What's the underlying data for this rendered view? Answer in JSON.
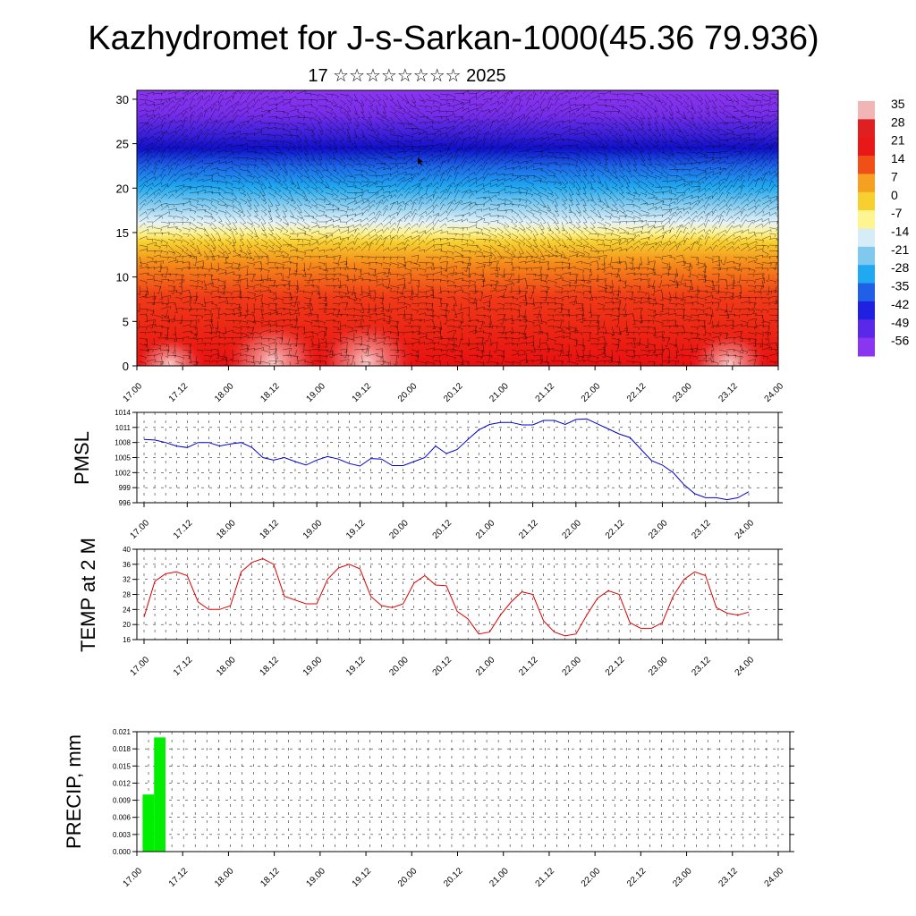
{
  "title": "Kazhydromet for J-s-Sarkan-1000(45.36 79.936)",
  "subtitle": "17 ☆☆☆☆☆☆☆☆ 2025",
  "x_tick_labels": [
    "17.00",
    "17.12",
    "18.00",
    "18.12",
    "19.00",
    "19.12",
    "20.00",
    "20.12",
    "21.00",
    "21.12",
    "22.00",
    "22.12",
    "23.00",
    "23.12",
    "24.00"
  ],
  "chart_data": [
    {
      "type": "heatmap",
      "name": "vertical temperature cross-section with wind barbs",
      "x_ticks": [
        "17.00",
        "17.12",
        "18.00",
        "18.12",
        "19.00",
        "19.12",
        "20.00",
        "20.12",
        "21.00",
        "21.12",
        "22.00",
        "22.12",
        "23.00",
        "23.12",
        "24.00"
      ],
      "y_ticks": [
        0,
        5,
        10,
        15,
        20,
        25,
        30
      ],
      "ylim": [
        0,
        31
      ],
      "colorbar_labels": [
        "35",
        "28",
        "21",
        "14",
        "7",
        "0",
        "-7",
        "-14",
        "-21",
        "-28",
        "-35",
        "-42",
        "-49",
        "-56"
      ],
      "colorbar_stops": [
        {
          "v": 35,
          "c": "#f2b5b5"
        },
        {
          "v": 28,
          "c": "#e02020"
        },
        {
          "v": 21,
          "c": "#e81818"
        },
        {
          "v": 14,
          "c": "#f05018"
        },
        {
          "v": 7,
          "c": "#f5a020"
        },
        {
          "v": 0,
          "c": "#f7d030"
        },
        {
          "v": -7,
          "c": "#fff590"
        },
        {
          "v": -14,
          "c": "#d6ecf7"
        },
        {
          "v": -21,
          "c": "#7fc8f0"
        },
        {
          "v": -28,
          "c": "#20a8f0"
        },
        {
          "v": -35,
          "c": "#2060e8"
        },
        {
          "v": -42,
          "c": "#2020e0"
        },
        {
          "v": -49,
          "c": "#5a28e8"
        },
        {
          "v": -56,
          "c": "#8a35f0"
        }
      ],
      "grid": false
    },
    {
      "type": "line",
      "ylabel": "PMSL",
      "ylim": [
        996,
        1014
      ],
      "y_ticks": [
        996,
        999,
        1002,
        1005,
        1008,
        1011,
        1014
      ],
      "x": [
        "17.00",
        "17.03",
        "17.06",
        "17.09",
        "17.12",
        "17.15",
        "17.18",
        "17.21",
        "18.00",
        "18.03",
        "18.06",
        "18.09",
        "18.12",
        "18.15",
        "18.18",
        "18.21",
        "19.00",
        "19.03",
        "19.06",
        "19.09",
        "19.12",
        "19.15",
        "19.18",
        "19.21",
        "20.00",
        "20.03",
        "20.06",
        "20.09",
        "20.12",
        "20.15",
        "20.18",
        "20.21",
        "21.00",
        "21.03",
        "21.06",
        "21.09",
        "21.12",
        "21.15",
        "21.18",
        "21.21",
        "22.00",
        "22.03",
        "22.06",
        "22.09",
        "22.12",
        "22.15",
        "22.18",
        "22.21",
        "23.00",
        "23.03",
        "23.06",
        "23.09",
        "23.12",
        "23.15",
        "23.18",
        "23.21",
        "24.00"
      ],
      "series": [
        {
          "color": "#0000cc",
          "values": [
            1008.6,
            1008.5,
            1008.0,
            1007.3,
            1007.0,
            1008.0,
            1008.0,
            1007.3,
            1007.7,
            1008.0,
            1007.0,
            1005.0,
            1004.5,
            1005.0,
            1004.2,
            1003.5,
            1004.5,
            1005.2,
            1004.7,
            1003.8,
            1003.3,
            1004.8,
            1004.7,
            1003.4,
            1003.4,
            1004.2,
            1005.0,
            1007.3,
            1005.8,
            1006.6,
            1008.6,
            1010.5,
            1011.6,
            1012.0,
            1012.0,
            1011.5,
            1011.5,
            1012.4,
            1012.4,
            1011.6,
            1012.6,
            1012.7,
            1011.7,
            1010.7,
            1009.7,
            1009.0,
            1006.7,
            1004.4,
            1003.5,
            1002.0,
            999.6,
            997.8,
            997.0,
            997.0,
            996.6,
            997.0,
            998.2
          ]
        }
      ]
    },
    {
      "type": "line",
      "ylabel": "TEMP at 2 M",
      "ylim": [
        16,
        40
      ],
      "y_ticks": [
        16,
        20,
        24,
        28,
        32,
        36,
        40
      ],
      "x": [
        "17.00",
        "17.03",
        "17.06",
        "17.09",
        "17.12",
        "17.15",
        "17.18",
        "17.21",
        "18.00",
        "18.03",
        "18.06",
        "18.09",
        "18.12",
        "18.15",
        "18.18",
        "18.21",
        "19.00",
        "19.03",
        "19.06",
        "19.09",
        "19.12",
        "19.15",
        "19.18",
        "19.21",
        "20.00",
        "20.03",
        "20.06",
        "20.09",
        "20.12",
        "20.15",
        "20.18",
        "20.21",
        "21.00",
        "21.03",
        "21.06",
        "21.09",
        "21.12",
        "21.15",
        "21.18",
        "21.21",
        "22.00",
        "22.03",
        "22.06",
        "22.09",
        "22.12",
        "22.15",
        "22.18",
        "22.21",
        "23.00",
        "23.03",
        "23.06",
        "23.09",
        "23.12",
        "23.15",
        "23.18",
        "23.21",
        "24.00"
      ],
      "series": [
        {
          "color": "#dd0000",
          "values": [
            22.0,
            31.5,
            33.5,
            34.0,
            33.0,
            26.0,
            24.0,
            24.0,
            25.0,
            34.0,
            36.5,
            37.5,
            36.0,
            27.5,
            26.5,
            25.5,
            25.5,
            32.0,
            35.0,
            36.0,
            34.8,
            27.5,
            25.0,
            24.5,
            25.5,
            31.0,
            33.0,
            30.5,
            30.3,
            23.5,
            21.5,
            17.5,
            18.0,
            22.5,
            26.0,
            28.7,
            28.0,
            21.0,
            18.0,
            17.0,
            17.5,
            22.5,
            27.0,
            29.0,
            28.0,
            20.5,
            19.0,
            19.0,
            20.5,
            27.5,
            32.0,
            34.0,
            33.0,
            24.5,
            23.0,
            22.5,
            23.3
          ]
        }
      ]
    },
    {
      "type": "bar",
      "ylabel": "PRECIP, mm",
      "ylim": [
        0.0,
        0.021
      ],
      "y_ticks": [
        "0.000",
        "0.003",
        "0.006",
        "0.009",
        "0.012",
        "0.015",
        "0.018",
        "0.021"
      ],
      "categories": [
        "17.03",
        "17.06"
      ],
      "bar_color": "#00ee00",
      "values": [
        0.01,
        0.02
      ]
    }
  ]
}
